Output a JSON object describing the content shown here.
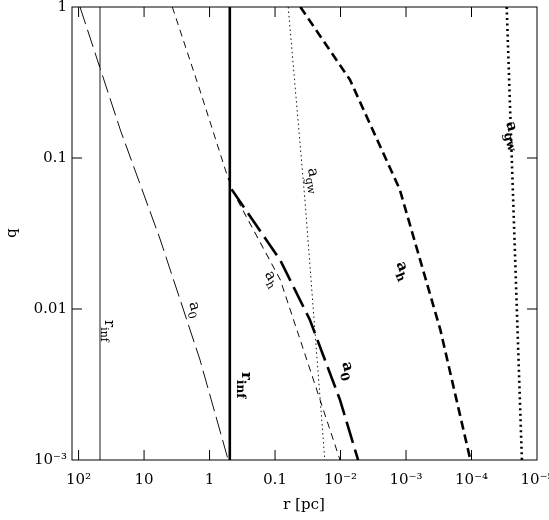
{
  "chart_data": {
    "type": "line",
    "xlabel": "r [pc]",
    "ylabel": "q",
    "xscale": "log",
    "yscale": "log",
    "xreversed": true,
    "xlim": [
      126,
      1e-05
    ],
    "ylim": [
      0.001,
      1
    ],
    "xticks": [
      {
        "value": 100,
        "label": "10²"
      },
      10,
      1,
      0.1,
      {
        "value": 0.01,
        "label": "10⁻²"
      },
      {
        "value": 0.001,
        "label": "10⁻³"
      },
      {
        "value": 0.0001,
        "label": "10⁻⁴"
      },
      {
        "value": 1e-05,
        "label": "10⁻⁵"
      }
    ],
    "yticks": [
      {
        "value": 0.001,
        "label": "10⁻³"
      },
      0.01,
      0.1,
      1
    ],
    "series": [
      {
        "label": "r",
        "sub": "inf",
        "color": "#000",
        "dash": "solid",
        "width": "thin",
        "x": [
          47,
          47
        ],
        "values": [
          0.001,
          1
        ]
      },
      {
        "label": "a",
        "sub": "0",
        "color": "#000",
        "dash": "long",
        "width": "thin",
        "x": [
          95,
          23,
          5.7,
          1.4,
          0.52
        ],
        "values": [
          1,
          0.153,
          0.029,
          0.0046,
          0.001
        ]
      },
      {
        "label": "a",
        "sub": "h",
        "color": "#000",
        "dash": "short",
        "width": "thin",
        "x": [
          3.7,
          1.4,
          0.46,
          0.083,
          0.0102
        ],
        "values": [
          1,
          0.28,
          0.062,
          0.0156,
          0.001
        ]
      },
      {
        "label": "a",
        "sub": "gw",
        "color": "#000",
        "dash": "dotted",
        "width": "thin",
        "x": [
          0.063,
          0.035,
          0.0174
        ],
        "values": [
          1,
          0.053,
          0.001
        ]
      },
      {
        "label": "r",
        "sub": "inf",
        "color": "#000",
        "dash": "solid",
        "width": "thick",
        "x": [
          0.49,
          0.49
        ],
        "values": [
          0.001,
          1
        ]
      },
      {
        "label": "a",
        "sub": "0",
        "color": "#000",
        "dash": "long",
        "width": "thick",
        "x": [
          0.46,
          0.083,
          0.0295,
          0.0102,
          0.0054
        ],
        "values": [
          0.062,
          0.021,
          0.0085,
          0.0025,
          0.001
        ]
      },
      {
        "label": "a",
        "sub": "h",
        "color": "#000",
        "dash": "short",
        "width": "thick",
        "x": [
          0.041,
          0.0072,
          0.00125,
          0.0003,
          0.000104
        ],
        "values": [
          1,
          0.33,
          0.062,
          0.0073,
          0.001
        ]
      },
      {
        "label": "a",
        "sub": "gw",
        "color": "#000",
        "dash": "dotted",
        "width": "thick",
        "x": [
          2.9e-05,
          1.7e-05
        ],
        "values": [
          1,
          0.001
        ]
      }
    ]
  }
}
